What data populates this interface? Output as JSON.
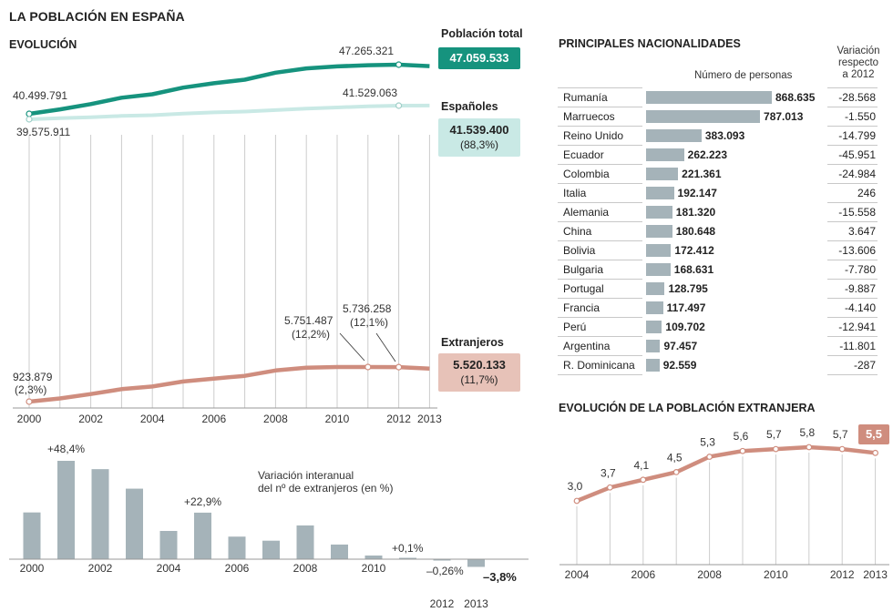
{
  "title": "LA POBLACIÓN EN ESPAÑA",
  "evolucion": {
    "heading": "EVOLUCIÓN",
    "total": {
      "label": "Población total",
      "badge_value": "47.059.533",
      "start_label": "40.499.791",
      "peak_label": "47.265.321",
      "color": "#16937e"
    },
    "espanoles": {
      "label": "Españoles",
      "badge_value": "41.539.400",
      "badge_pct": "(88,3%)",
      "start_label": "39.575.911",
      "peak_label": "41.529.063",
      "color": "#c9e9e5"
    },
    "extranjeros": {
      "label": "Extranjeros",
      "badge_value": "5.520.133",
      "badge_pct": "(11,7%)",
      "start_label": "923.879",
      "start_pct": "(2,3%)",
      "peak1_label": "5.751.487",
      "peak1_pct": "(12,2%)",
      "peak2_label": "5.736.258",
      "peak2_pct": "(12,1%)",
      "color": "#cf8d7e"
    }
  },
  "variacion": {
    "caption_line1": "Variación interanual",
    "caption_line2": "del nº de extranjeros (en %)",
    "label_2001": "+48,4%",
    "label_2005": "+22,9%",
    "label_2011": "+0,1%",
    "label_2012": "–0,26%",
    "label_2013": "–3,8%"
  },
  "nacionalidades": {
    "heading": "PRINCIPALES NACIONALIDADES",
    "col_personas": "Número de personas",
    "col_variacion_1": "Variación",
    "col_variacion_2": "respecto",
    "col_variacion_3": "a 2012",
    "bar_color": "#a5b3b9"
  },
  "evol_extranjera": {
    "heading": "EVOLUCIÓN DE LA POBLACIÓN EXTRANJERA",
    "badge_value": "5,5"
  },
  "chart_data": [
    {
      "type": "line",
      "x": [
        2000,
        2001,
        2002,
        2003,
        2004,
        2005,
        2006,
        2007,
        2008,
        2009,
        2010,
        2011,
        2012,
        2013
      ],
      "series": [
        {
          "name": "Población total",
          "values": [
            40499791,
            41116842,
            41837894,
            42717064,
            43197684,
            44108530,
            44708964,
            45200737,
            46157822,
            46745807,
            47021031,
            47190493,
            47265321,
            47059533
          ]
        },
        {
          "name": "Españoles",
          "values": [
            39575911,
            39746185,
            39859948,
            40052896,
            40163358,
            40377920,
            40564798,
            40681183,
            40889060,
            41097136,
            41273297,
            41439006,
            41529063,
            41539400
          ]
        },
        {
          "name": "Extranjeros",
          "values": [
            923879,
            1370657,
            1977946,
            2664168,
            3034326,
            3730610,
            4144166,
            4519554,
            5268762,
            5648671,
            5747734,
            5751487,
            5736258,
            5520133
          ]
        }
      ],
      "xticks": [
        2000,
        2002,
        2004,
        2006,
        2008,
        2010,
        2012,
        2013
      ]
    },
    {
      "type": "bar",
      "title": "Variación interanual del nº de extranjeros (en %)",
      "categories": [
        2000,
        2001,
        2002,
        2003,
        2004,
        2005,
        2006,
        2007,
        2008,
        2009,
        2010,
        2011,
        2012,
        2013
      ],
      "values": [
        23.0,
        48.4,
        44.3,
        34.7,
        13.9,
        22.9,
        11.1,
        9.1,
        16.6,
        7.2,
        1.8,
        0.1,
        -0.26,
        -3.8
      ],
      "xticks": [
        2000,
        2002,
        2004,
        2006,
        2008,
        2010,
        2012,
        2013
      ]
    },
    {
      "type": "bar",
      "title": "PRINCIPALES NACIONALIDADES",
      "categories": [
        "Rumanía",
        "Marruecos",
        "Reino Unido",
        "Ecuador",
        "Colombia",
        "Italia",
        "Alemania",
        "China",
        "Bolivia",
        "Bulgaria",
        "Portugal",
        "Francia",
        "Perú",
        "Argentina",
        "R. Dominicana"
      ],
      "values": [
        868635,
        787013,
        383093,
        262223,
        221361,
        192147,
        181320,
        180648,
        172412,
        168631,
        128795,
        117497,
        109702,
        97457,
        92559
      ],
      "value_labels": [
        "868.635",
        "787.013",
        "383.093",
        "262.223",
        "221.361",
        "192.147",
        "181.320",
        "180.648",
        "172.412",
        "168.631",
        "128.795",
        "117.497",
        "109.702",
        "97.457",
        "92.559"
      ],
      "variacion_labels": [
        "-28.568",
        "-1.550",
        "-14.799",
        "-45.951",
        "-24.984",
        "246",
        "-15.558",
        "3.647",
        "-13.606",
        "-7.780",
        "-9.887",
        "-4.140",
        "-12.941",
        "-11.801",
        "-287"
      ]
    },
    {
      "type": "line",
      "title": "EVOLUCIÓN DE LA POBLACIÓN EXTRANJERA",
      "x": [
        2004,
        2005,
        2006,
        2007,
        2008,
        2009,
        2010,
        2011,
        2012,
        2013
      ],
      "values": [
        3.0,
        3.7,
        4.1,
        4.5,
        5.3,
        5.6,
        5.7,
        5.8,
        5.7,
        5.5
      ],
      "point_labels": [
        "3,0",
        "3,7",
        "4,1",
        "4,5",
        "5,3",
        "5,6",
        "5,7",
        "5,8",
        "5,7",
        "5,5"
      ],
      "xticks": [
        2004,
        2006,
        2008,
        2010,
        2012,
        2013
      ]
    }
  ]
}
